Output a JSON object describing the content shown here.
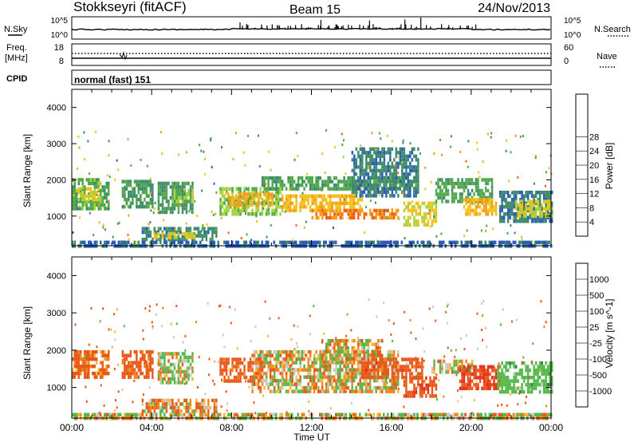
{
  "header": {
    "station": "Stokkseyri (fitACF)",
    "beam": "Beam 15",
    "date": "24/Nov/2013"
  },
  "nsky_panel": {
    "left_label": "N.Sky",
    "right_label": "N.Search",
    "y_ticks_left": [
      "10^5",
      "10^0"
    ],
    "y_ticks_right": [
      "10^5",
      "10^0"
    ]
  },
  "freq_panel": {
    "left_label_line1": "Freq.",
    "left_label_line2": "[MHz]",
    "y_ticks_left": [
      "18",
      "8"
    ],
    "right_label": "Nave",
    "y_ticks_right": [
      "60",
      "0"
    ]
  },
  "cpid_panel": {
    "label": "CPID",
    "program": "normal (fast) 151"
  },
  "chart_data": [
    {
      "type": "heatmap",
      "title": "",
      "xlabel": "",
      "ylabel": "Slant Range [km]",
      "x_range_hours": [
        0,
        24
      ],
      "ylim": [
        180,
        4500
      ],
      "y_ticks": [
        1000,
        2000,
        3000,
        4000
      ],
      "colorbar": {
        "label": "Power [dB]",
        "ticks": [
          "4",
          "8",
          "12",
          "16",
          "20",
          "24",
          "28"
        ],
        "colors": [
          "#1a1aff",
          "#2a5bbf",
          "#3f8a6a",
          "#4fa84a",
          "#a8d23a",
          "#f2c21a",
          "#f59a1a",
          "#f0641a",
          "#e62d16",
          "#ff0000"
        ],
        "tick_values": [
          4,
          8,
          12,
          16,
          20,
          24,
          28
        ],
        "cbar_range": [
          0,
          32
        ]
      },
      "regions": [
        {
          "t0": 0.0,
          "t1": 1.8,
          "r0": 1200,
          "r1": 2050,
          "v": 14
        },
        {
          "t0": 0.3,
          "t1": 1.3,
          "r0": 1450,
          "r1": 1800,
          "v": 20
        },
        {
          "t0": 2.5,
          "t1": 4.0,
          "r0": 1300,
          "r1": 2000,
          "v": 12
        },
        {
          "t0": 4.3,
          "t1": 6.0,
          "r0": 1100,
          "r1": 1950,
          "v": 11
        },
        {
          "t0": 5.0,
          "t1": 6.0,
          "r0": 1400,
          "r1": 1750,
          "v": 17
        },
        {
          "t0": 3.5,
          "t1": 7.2,
          "r0": 350,
          "r1": 700,
          "v": 10
        },
        {
          "t0": 4.1,
          "t1": 6.1,
          "r0": 420,
          "r1": 560,
          "v": 21
        },
        {
          "t0": 7.4,
          "t1": 10.5,
          "r0": 1050,
          "r1": 1800,
          "v": 16
        },
        {
          "t0": 7.8,
          "t1": 10.0,
          "r0": 1300,
          "r1": 1650,
          "v": 24
        },
        {
          "t0": 9.5,
          "t1": 17.2,
          "r0": 1750,
          "r1": 2100,
          "v": 13
        },
        {
          "t0": 10.5,
          "t1": 14.5,
          "r0": 1200,
          "r1": 1600,
          "v": 23
        },
        {
          "t0": 12.0,
          "t1": 16.3,
          "r0": 950,
          "r1": 1200,
          "v": 28
        },
        {
          "t0": 14.0,
          "t1": 17.3,
          "r0": 1600,
          "r1": 2900,
          "v": 9
        },
        {
          "t0": 16.6,
          "t1": 18.2,
          "r0": 750,
          "r1": 1400,
          "v": 20
        },
        {
          "t0": 18.2,
          "t1": 21.0,
          "r0": 1450,
          "r1": 2050,
          "v": 13
        },
        {
          "t0": 19.6,
          "t1": 21.2,
          "r0": 1050,
          "r1": 1500,
          "v": 24
        },
        {
          "t0": 21.4,
          "t1": 24.0,
          "r0": 900,
          "r1": 1700,
          "v": 9
        },
        {
          "t0": 22.2,
          "t1": 24.0,
          "r0": 1050,
          "r1": 1450,
          "v": 20
        },
        {
          "t0": 0.0,
          "t1": 24.0,
          "r0": 180,
          "r1": 320,
          "v": 7
        }
      ]
    },
    {
      "type": "heatmap",
      "title": "",
      "xlabel": "Time UT",
      "ylabel": "Slant Range [km]",
      "x_range_hours": [
        0,
        24
      ],
      "x_ticks": [
        "00:00",
        "04:00",
        "08:00",
        "12:00",
        "16:00",
        "20:00",
        "00:00"
      ],
      "ylim": [
        180,
        4500
      ],
      "y_ticks": [
        1000,
        2000,
        3000,
        4000
      ],
      "colorbar": {
        "label": "Velocity [m s^-1]",
        "ticks": [
          "1000",
          "500",
          "100",
          "25",
          "-25",
          "-100",
          "-500",
          "-1000"
        ],
        "colors": [
          "#1a3fbf",
          "#3a7a4f",
          "#55b84a",
          "#c8c8c0",
          "#f7b733",
          "#f0861a",
          "#e85818",
          "#e62d16",
          "#ff0000"
        ],
        "tick_values": [
          1000,
          500,
          100,
          25,
          -25,
          -100,
          -500,
          -1000
        ],
        "cbar_range": [
          -1200,
          1200
        ]
      },
      "regions": [
        {
          "t0": 0.0,
          "t1": 1.8,
          "r0": 1250,
          "r1": 2000,
          "v": -200
        },
        {
          "t0": 2.5,
          "t1": 4.0,
          "r0": 1300,
          "r1": 2000,
          "v": -250
        },
        {
          "t0": 4.3,
          "t1": 6.0,
          "r0": 1100,
          "r1": 1950,
          "v": 80
        },
        {
          "t0": 3.5,
          "t1": 7.2,
          "r0": 350,
          "r1": 700,
          "v": -60
        },
        {
          "t0": 7.4,
          "t1": 9.5,
          "r0": 1200,
          "r1": 1800,
          "v": -250
        },
        {
          "t0": 9.0,
          "t1": 16.3,
          "r0": 900,
          "r1": 2000,
          "v": 0
        },
        {
          "t0": 12.5,
          "t1": 15.5,
          "r0": 1700,
          "r1": 2300,
          "v": 0
        },
        {
          "t0": 14.5,
          "t1": 17.5,
          "r0": 1250,
          "r1": 1800,
          "v": -300
        },
        {
          "t0": 16.6,
          "t1": 18.2,
          "r0": 750,
          "r1": 1300,
          "v": -350
        },
        {
          "t0": 18.0,
          "t1": 20.0,
          "r0": 1450,
          "r1": 1750,
          "v": 60
        },
        {
          "t0": 19.4,
          "t1": 21.4,
          "r0": 1000,
          "r1": 1600,
          "v": -500
        },
        {
          "t0": 21.3,
          "t1": 24.0,
          "r0": 900,
          "r1": 1700,
          "v": 300
        },
        {
          "t0": 0.0,
          "t1": 24.0,
          "r0": 180,
          "r1": 320,
          "v": 40
        }
      ]
    }
  ]
}
